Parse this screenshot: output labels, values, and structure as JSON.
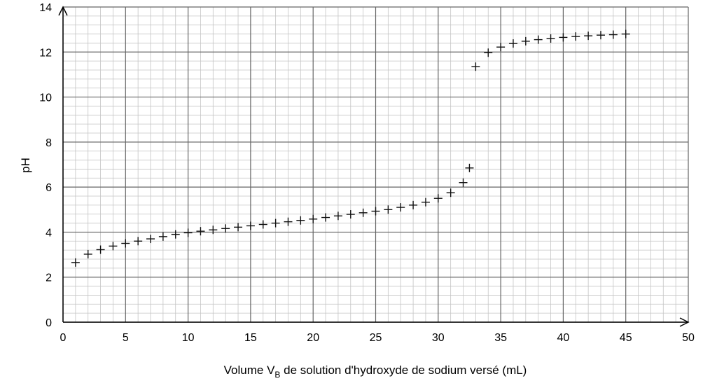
{
  "chart_data": {
    "type": "scatter",
    "title": "",
    "xlabel": {
      "before": "Volume V",
      "subscript": "B",
      "after": " de solution d'hydroxyde de sodium versé (mL)"
    },
    "ylabel": "pH",
    "xlim": [
      0,
      50
    ],
    "ylim": [
      0,
      14
    ],
    "x_ticks": [
      "0",
      "5",
      "10",
      "15",
      "20",
      "25",
      "30",
      "35",
      "40",
      "45",
      "50"
    ],
    "y_ticks": [
      "0",
      "2",
      "4",
      "6",
      "8",
      "10",
      "12",
      "14"
    ],
    "grid": true,
    "marker": "plus",
    "colors": {
      "major_grid": "#666666",
      "minor_grid": "#c4c4c4",
      "marker": "#111111",
      "axis": "#000000"
    },
    "points": [
      {
        "x": 1,
        "y": 2.65
      },
      {
        "x": 2,
        "y": 3.02
      },
      {
        "x": 3,
        "y": 3.22
      },
      {
        "x": 4,
        "y": 3.38
      },
      {
        "x": 5,
        "y": 3.5
      },
      {
        "x": 6,
        "y": 3.6
      },
      {
        "x": 7,
        "y": 3.7
      },
      {
        "x": 8,
        "y": 3.8
      },
      {
        "x": 9,
        "y": 3.9
      },
      {
        "x": 10,
        "y": 3.97
      },
      {
        "x": 11,
        "y": 4.04
      },
      {
        "x": 12,
        "y": 4.1
      },
      {
        "x": 13,
        "y": 4.16
      },
      {
        "x": 14,
        "y": 4.22
      },
      {
        "x": 15,
        "y": 4.28
      },
      {
        "x": 16,
        "y": 4.34
      },
      {
        "x": 17,
        "y": 4.4
      },
      {
        "x": 18,
        "y": 4.46
      },
      {
        "x": 19,
        "y": 4.52
      },
      {
        "x": 20,
        "y": 4.58
      },
      {
        "x": 21,
        "y": 4.65
      },
      {
        "x": 22,
        "y": 4.72
      },
      {
        "x": 23,
        "y": 4.79
      },
      {
        "x": 24,
        "y": 4.86
      },
      {
        "x": 25,
        "y": 4.93
      },
      {
        "x": 26,
        "y": 5.0
      },
      {
        "x": 27,
        "y": 5.1
      },
      {
        "x": 28,
        "y": 5.2
      },
      {
        "x": 29,
        "y": 5.33
      },
      {
        "x": 30,
        "y": 5.5
      },
      {
        "x": 31,
        "y": 5.75
      },
      {
        "x": 32,
        "y": 6.2
      },
      {
        "x": 32.5,
        "y": 6.85
      },
      {
        "x": 33,
        "y": 11.35
      },
      {
        "x": 34,
        "y": 11.97
      },
      {
        "x": 35,
        "y": 12.22
      },
      {
        "x": 36,
        "y": 12.38
      },
      {
        "x": 37,
        "y": 12.48
      },
      {
        "x": 38,
        "y": 12.55
      },
      {
        "x": 39,
        "y": 12.6
      },
      {
        "x": 40,
        "y": 12.65
      },
      {
        "x": 41,
        "y": 12.69
      },
      {
        "x": 42,
        "y": 12.72
      },
      {
        "x": 43,
        "y": 12.75
      },
      {
        "x": 44,
        "y": 12.77
      },
      {
        "x": 45,
        "y": 12.8
      }
    ]
  }
}
